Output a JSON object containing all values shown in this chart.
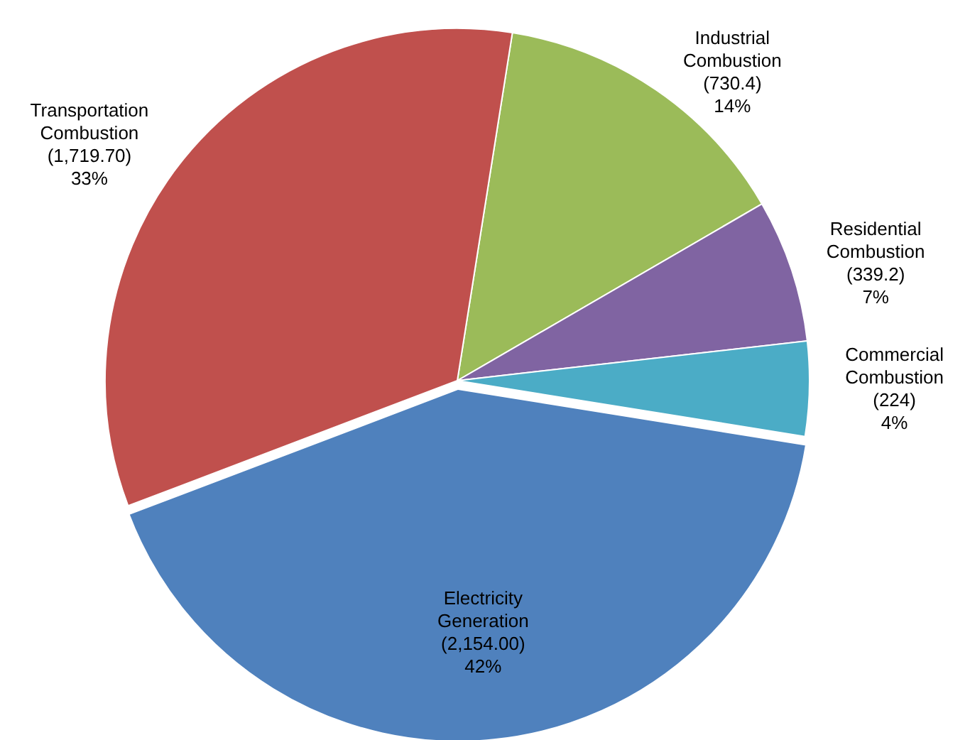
{
  "chart_data": {
    "type": "pie",
    "categories": [
      "Industrial Combustion",
      "Residential Combustion",
      "Commercial Combustion",
      "Electricity Generation",
      "Transportation Combustion"
    ],
    "values": [
      730.4,
      339.2,
      224,
      2154.0,
      1719.7
    ],
    "colors": [
      "#9bbb59",
      "#8064a2",
      "#4bacc6",
      "#4f81bd",
      "#c0504d"
    ],
    "value_labels": [
      "(730.4)\n14%",
      "(339.2)\n7%",
      "(224)\n4%",
      "(2,154.00)\n42%",
      "(1,719.70)\n33%"
    ]
  }
}
